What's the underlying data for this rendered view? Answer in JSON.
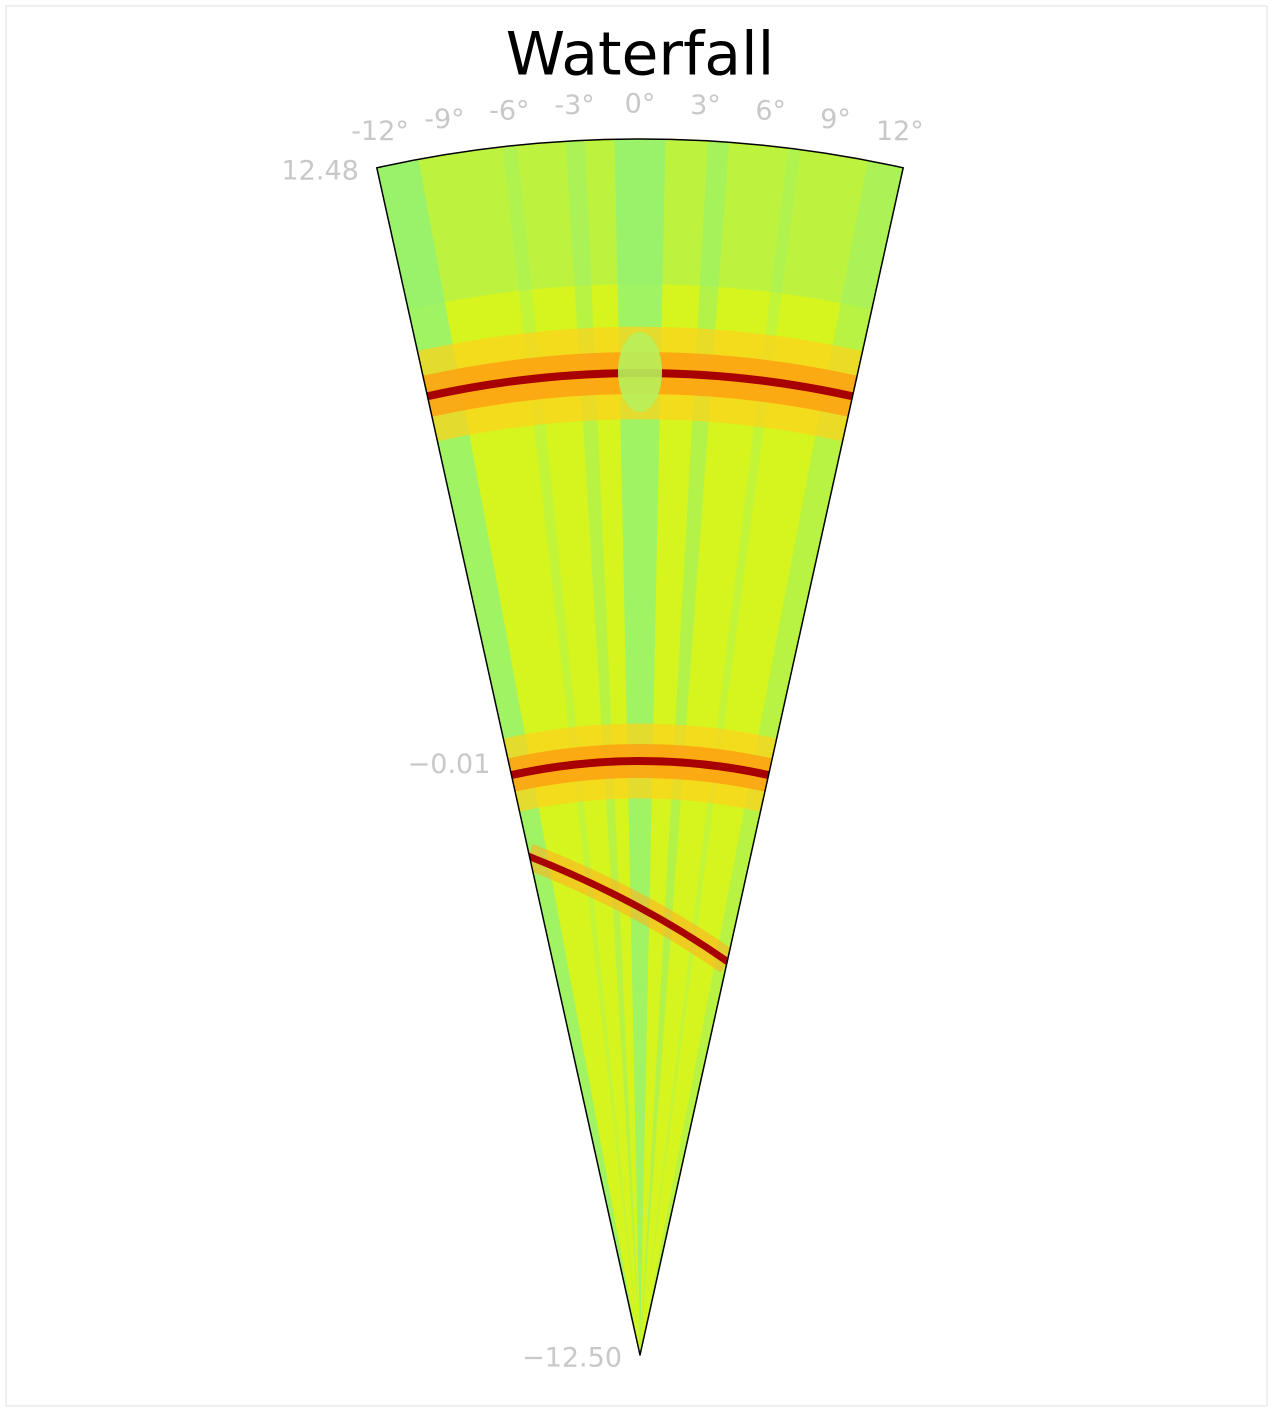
{
  "chart_data": {
    "type": "polar",
    "title": "Waterfall",
    "thetalim": [
      -12.5,
      12.5
    ],
    "thetaticks": [
      {
        "value": -12,
        "label": "-12°"
      },
      {
        "value": -9,
        "label": "-9°"
      },
      {
        "value": -6,
        "label": "-6°"
      },
      {
        "value": -3,
        "label": "-3°"
      },
      {
        "value": 0,
        "label": "0°"
      },
      {
        "value": 3,
        "label": "3°"
      },
      {
        "value": 6,
        "label": "6°"
      },
      {
        "value": 9,
        "label": "9°"
      },
      {
        "value": 12,
        "label": "12°"
      }
    ],
    "rlim": [
      -12.5,
      12.48
    ],
    "rticks": [
      {
        "value": -12.5,
        "label": "−12.50"
      },
      {
        "value": -0.01,
        "label": "−0.01"
      },
      {
        "value": 12.48,
        "label": "12.48"
      }
    ]
  }
}
